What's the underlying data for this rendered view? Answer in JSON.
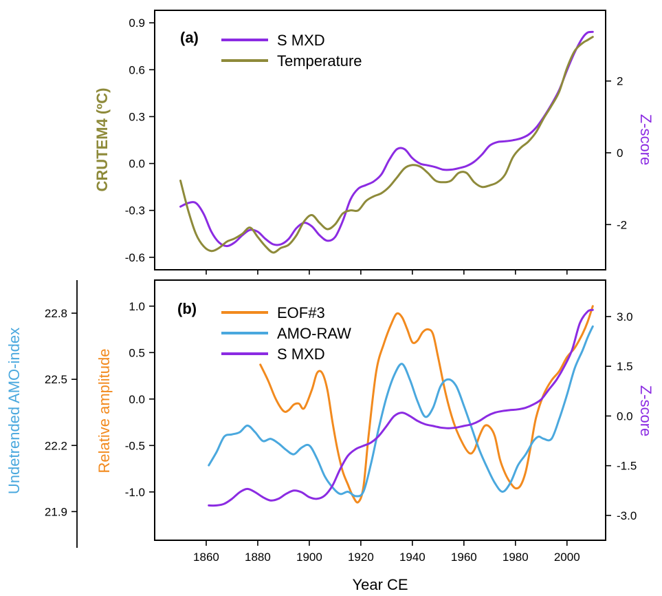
{
  "chart_data": [
    {
      "panel": "(a)",
      "type": "line",
      "xlabel": "",
      "xlim": [
        1840,
        2015
      ],
      "left_axis": {
        "label": "CRUTEM4 (ºC)",
        "color": "#8e8a3a",
        "ylim": [
          -0.68,
          0.98
        ],
        "ticks": [
          -0.6,
          -0.3,
          0.0,
          0.3,
          0.6,
          0.9
        ],
        "tick_labels": [
          "-0.6",
          "-0.3",
          "0.0",
          "0.3",
          "0.6",
          "0.9"
        ]
      },
      "right_axis": {
        "label": "Z-score",
        "color": "#8b2be2",
        "ylim": [
          -3.26,
          3.97
        ],
        "ticks": [
          -2,
          0,
          2
        ],
        "tick_labels": [
          "-2",
          "0",
          "2"
        ]
      },
      "legend_position": "top-left",
      "series": [
        {
          "name": "S MXD",
          "color": "#8b2be2",
          "axis": "right",
          "x": [
            1850,
            1853,
            1856,
            1859,
            1862,
            1865,
            1868,
            1871,
            1874,
            1877,
            1880,
            1883,
            1886,
            1889,
            1892,
            1895,
            1898,
            1901,
            1904,
            1907,
            1910,
            1913,
            1916,
            1919,
            1922,
            1925,
            1928,
            1931,
            1934,
            1937,
            1940,
            1943,
            1946,
            1949,
            1952,
            1955,
            1958,
            1961,
            1964,
            1967,
            1970,
            1973,
            1976,
            1979,
            1982,
            1985,
            1988,
            1991,
            1994,
            1997,
            2000,
            2003,
            2006,
            2008,
            2010
          ],
          "y": [
            -1.5,
            -1.4,
            -1.4,
            -1.7,
            -2.2,
            -2.5,
            -2.6,
            -2.5,
            -2.3,
            -2.15,
            -2.2,
            -2.4,
            -2.55,
            -2.55,
            -2.4,
            -2.1,
            -1.95,
            -2.05,
            -2.3,
            -2.45,
            -2.35,
            -1.9,
            -1.3,
            -1.0,
            -0.9,
            -0.8,
            -0.6,
            -0.2,
            0.1,
            0.1,
            -0.15,
            -0.3,
            -0.35,
            -0.4,
            -0.47,
            -0.47,
            -0.43,
            -0.37,
            -0.25,
            -0.05,
            0.2,
            0.3,
            0.32,
            0.35,
            0.4,
            0.5,
            0.7,
            1.0,
            1.35,
            1.75,
            2.3,
            2.8,
            3.2,
            3.35,
            3.37
          ]
        },
        {
          "name": "Temperature",
          "color": "#8e8a3a",
          "axis": "left",
          "x": [
            1850,
            1853,
            1856,
            1859,
            1862,
            1865,
            1868,
            1871,
            1874,
            1877,
            1880,
            1883,
            1886,
            1889,
            1892,
            1895,
            1898,
            1901,
            1904,
            1907,
            1910,
            1913,
            1916,
            1919,
            1922,
            1925,
            1928,
            1931,
            1934,
            1937,
            1940,
            1943,
            1946,
            1949,
            1952,
            1955,
            1958,
            1961,
            1964,
            1967,
            1970,
            1973,
            1976,
            1979,
            1982,
            1985,
            1988,
            1991,
            1994,
            1997,
            2000,
            2003,
            2006,
            2008,
            2010
          ],
          "y": [
            -0.11,
            -0.3,
            -0.45,
            -0.53,
            -0.56,
            -0.54,
            -0.5,
            -0.48,
            -0.45,
            -0.41,
            -0.47,
            -0.53,
            -0.57,
            -0.54,
            -0.52,
            -0.46,
            -0.37,
            -0.33,
            -0.38,
            -0.42,
            -0.39,
            -0.32,
            -0.3,
            -0.3,
            -0.24,
            -0.21,
            -0.19,
            -0.15,
            -0.09,
            -0.03,
            -0.01,
            -0.02,
            -0.06,
            -0.11,
            -0.12,
            -0.11,
            -0.06,
            -0.06,
            -0.12,
            -0.15,
            -0.14,
            -0.12,
            -0.07,
            0.04,
            0.1,
            0.14,
            0.2,
            0.29,
            0.37,
            0.46,
            0.61,
            0.72,
            0.77,
            0.79,
            0.81
          ]
        }
      ]
    },
    {
      "panel": "(b)",
      "type": "line",
      "xlabel": "Year CE",
      "xlim": [
        1840,
        2015
      ],
      "x_ticks": [
        1860,
        1880,
        1900,
        1920,
        1940,
        1960,
        1980,
        2000
      ],
      "x_tick_labels": [
        "1860",
        "1880",
        "1900",
        "1920",
        "1940",
        "1960",
        "1980",
        "2000"
      ],
      "outer_left_axis": {
        "label": "Undetrended AMO-index",
        "color": "#4aa8de",
        "ylim": [
          21.77,
          22.95
        ],
        "ticks": [
          21.9,
          22.2,
          22.5,
          22.8
        ],
        "tick_labels": [
          "21.9",
          "22.2",
          "22.5",
          "22.8"
        ]
      },
      "left_axis": {
        "label": "Relative amplitude",
        "color": "#f28a1e",
        "ylim": [
          -1.52,
          1.28
        ],
        "ticks": [
          -1.0,
          -0.5,
          0.0,
          0.5,
          1.0
        ],
        "tick_labels": [
          "-1.0",
          "-0.5",
          "0.0",
          "0.5",
          "1.0"
        ]
      },
      "right_axis": {
        "label": "Z-score",
        "color": "#8b2be2",
        "ylim": [
          -3.75,
          4.1
        ],
        "ticks": [
          -3.0,
          -1.5,
          0.0,
          1.5,
          3.0
        ],
        "tick_labels": [
          "-3.0",
          "-1.5",
          "0.0",
          "1.5",
          "3.0"
        ]
      },
      "legend_position": "top-left",
      "series": [
        {
          "name": "EOF#3",
          "color": "#f28a1e",
          "axis": "left",
          "x": [
            1881,
            1884,
            1887,
            1890,
            1892,
            1894,
            1896,
            1898,
            1901,
            1903,
            1905,
            1907,
            1909,
            1911,
            1913,
            1915,
            1917,
            1919,
            1921,
            1923,
            1926,
            1929,
            1932,
            1934,
            1936,
            1938,
            1940,
            1942,
            1944,
            1946,
            1948,
            1950,
            1953,
            1956,
            1959,
            1962,
            1964,
            1966,
            1968,
            1970,
            1972,
            1974,
            1976,
            1978,
            1980,
            1982,
            1984,
            1986,
            1988,
            1991,
            1994,
            1997,
            2000,
            2003,
            2006,
            2008,
            2010
          ],
          "y": [
            0.37,
            0.2,
            0.0,
            -0.13,
            -0.12,
            -0.06,
            -0.05,
            -0.1,
            0.1,
            0.28,
            0.28,
            0.1,
            -0.25,
            -0.55,
            -0.78,
            -0.92,
            -1.05,
            -1.11,
            -0.95,
            -0.4,
            0.3,
            0.6,
            0.82,
            0.92,
            0.88,
            0.75,
            0.61,
            0.63,
            0.72,
            0.75,
            0.7,
            0.45,
            0.05,
            -0.25,
            -0.45,
            -0.58,
            -0.55,
            -0.4,
            -0.29,
            -0.3,
            -0.4,
            -0.65,
            -0.8,
            -0.9,
            -0.96,
            -0.93,
            -0.78,
            -0.5,
            -0.2,
            0.05,
            0.2,
            0.3,
            0.45,
            0.55,
            0.7,
            0.83,
            1.0
          ]
        },
        {
          "name": "AMO-RAW",
          "color": "#4aa8de",
          "axis": "outer_left",
          "x": [
            1861,
            1864,
            1867,
            1870,
            1873,
            1876,
            1879,
            1882,
            1885,
            1888,
            1891,
            1894,
            1897,
            1900,
            1903,
            1906,
            1909,
            1912,
            1915,
            1918,
            1921,
            1924,
            1927,
            1930,
            1933,
            1936,
            1939,
            1942,
            1945,
            1948,
            1951,
            1954,
            1957,
            1960,
            1963,
            1966,
            1969,
            1972,
            1975,
            1978,
            1981,
            1984,
            1987,
            1989,
            1991,
            1994,
            1997,
            2000,
            2003,
            2006,
            2008,
            2010
          ],
          "y": [
            22.11,
            22.17,
            22.24,
            22.25,
            22.26,
            22.29,
            22.26,
            22.22,
            22.23,
            22.21,
            22.18,
            22.16,
            22.19,
            22.2,
            22.14,
            22.06,
            22.01,
            21.98,
            21.99,
            21.97,
            21.99,
            22.12,
            22.28,
            22.42,
            22.52,
            22.57,
            22.5,
            22.4,
            22.33,
            22.37,
            22.47,
            22.5,
            22.47,
            22.38,
            22.28,
            22.18,
            22.1,
            22.03,
            21.99,
            22.03,
            22.11,
            22.16,
            22.22,
            22.24,
            22.23,
            22.23,
            22.32,
            22.43,
            22.55,
            22.63,
            22.69,
            22.74
          ]
        },
        {
          "name": "S MXD",
          "color": "#8b2be2",
          "axis": "right",
          "x": [
            1861,
            1864,
            1867,
            1870,
            1873,
            1876,
            1879,
            1882,
            1885,
            1888,
            1891,
            1894,
            1897,
            1900,
            1903,
            1906,
            1909,
            1912,
            1915,
            1918,
            1921,
            1924,
            1927,
            1930,
            1933,
            1936,
            1939,
            1942,
            1945,
            1948,
            1951,
            1954,
            1957,
            1960,
            1963,
            1966,
            1969,
            1972,
            1975,
            1978,
            1981,
            1984,
            1987,
            1990,
            1993,
            1996,
            1999,
            2002,
            2005,
            2008,
            2010
          ],
          "y": [
            -2.7,
            -2.7,
            -2.65,
            -2.5,
            -2.3,
            -2.2,
            -2.3,
            -2.45,
            -2.55,
            -2.5,
            -2.35,
            -2.25,
            -2.3,
            -2.45,
            -2.5,
            -2.4,
            -2.1,
            -1.6,
            -1.2,
            -1.0,
            -0.9,
            -0.8,
            -0.6,
            -0.3,
            0.0,
            0.1,
            0.0,
            -0.15,
            -0.25,
            -0.3,
            -0.35,
            -0.37,
            -0.35,
            -0.3,
            -0.25,
            -0.15,
            0.0,
            0.1,
            0.15,
            0.18,
            0.2,
            0.25,
            0.35,
            0.5,
            0.8,
            1.1,
            1.5,
            2.0,
            2.8,
            3.15,
            3.2
          ]
        }
      ]
    }
  ]
}
